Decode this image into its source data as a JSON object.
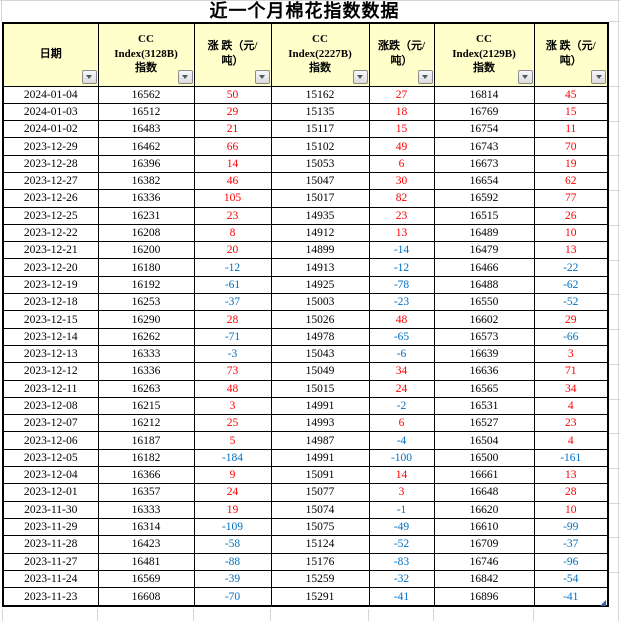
{
  "page": {
    "title": "近一个月棉花指数数据"
  },
  "table": {
    "columns": [
      {
        "label": "日期"
      },
      {
        "label": "CC\nIndex(3128B)\n指数"
      },
      {
        "label": "涨 跌（元/\n吨）"
      },
      {
        "label": "CC\nIndex(2227B)\n指数"
      },
      {
        "label": "涨跌（元/\n吨）"
      },
      {
        "label": "CC\nIndex(2129B)\n指数"
      },
      {
        "label": "涨 跌（元/\n吨）"
      }
    ],
    "rows": [
      [
        "2024-01-04",
        16562,
        50,
        15162,
        27,
        16814,
        45
      ],
      [
        "2024-01-03",
        16512,
        29,
        15135,
        18,
        16769,
        15
      ],
      [
        "2024-01-02",
        16483,
        21,
        15117,
        15,
        16754,
        11
      ],
      [
        "2023-12-29",
        16462,
        66,
        15102,
        49,
        16743,
        70
      ],
      [
        "2023-12-28",
        16396,
        14,
        15053,
        6,
        16673,
        19
      ],
      [
        "2023-12-27",
        16382,
        46,
        15047,
        30,
        16654,
        62
      ],
      [
        "2023-12-26",
        16336,
        105,
        15017,
        82,
        16592,
        77
      ],
      [
        "2023-12-25",
        16231,
        23,
        14935,
        23,
        16515,
        26
      ],
      [
        "2023-12-22",
        16208,
        8,
        14912,
        13,
        16489,
        10
      ],
      [
        "2023-12-21",
        16200,
        20,
        14899,
        -14,
        16479,
        13
      ],
      [
        "2023-12-20",
        16180,
        -12,
        14913,
        -12,
        16466,
        -22
      ],
      [
        "2023-12-19",
        16192,
        -61,
        14925,
        -78,
        16488,
        -62
      ],
      [
        "2023-12-18",
        16253,
        -37,
        15003,
        -23,
        16550,
        -52
      ],
      [
        "2023-12-15",
        16290,
        28,
        15026,
        48,
        16602,
        29
      ],
      [
        "2023-12-14",
        16262,
        -71,
        14978,
        -65,
        16573,
        -66
      ],
      [
        "2023-12-13",
        16333,
        -3,
        15043,
        -6,
        16639,
        3
      ],
      [
        "2023-12-12",
        16336,
        73,
        15049,
        34,
        16636,
        71
      ],
      [
        "2023-12-11",
        16263,
        48,
        15015,
        24,
        16565,
        34
      ],
      [
        "2023-12-08",
        16215,
        3,
        14991,
        -2,
        16531,
        4
      ],
      [
        "2023-12-07",
        16212,
        25,
        14993,
        6,
        16527,
        23
      ],
      [
        "2023-12-06",
        16187,
        5,
        14987,
        -4,
        16504,
        4
      ],
      [
        "2023-12-05",
        16182,
        -184,
        14991,
        -100,
        16500,
        -161
      ],
      [
        "2023-12-04",
        16366,
        9,
        15091,
        14,
        16661,
        13
      ],
      [
        "2023-12-01",
        16357,
        24,
        15077,
        3,
        16648,
        28
      ],
      [
        "2023-11-30",
        16333,
        19,
        15074,
        -1,
        16620,
        10
      ],
      [
        "2023-11-29",
        16314,
        -109,
        15075,
        -49,
        16610,
        -99
      ],
      [
        "2023-11-28",
        16423,
        -58,
        15124,
        -52,
        16709,
        -37
      ],
      [
        "2023-11-27",
        16481,
        -88,
        15176,
        -83,
        16746,
        -96
      ],
      [
        "2023-11-24",
        16569,
        -39,
        15259,
        -32,
        16842,
        -54
      ],
      [
        "2023-11-23",
        16608,
        -70,
        15291,
        -41,
        16896,
        -41
      ]
    ]
  },
  "colors": {
    "positive": "#FF0000",
    "negative": "#0070C0",
    "header_bg": "#FFFFCC",
    "grid_border": "#000000",
    "sheet_gridline": "#D6D6D6",
    "resize_handle": "#3A5FA8"
  }
}
